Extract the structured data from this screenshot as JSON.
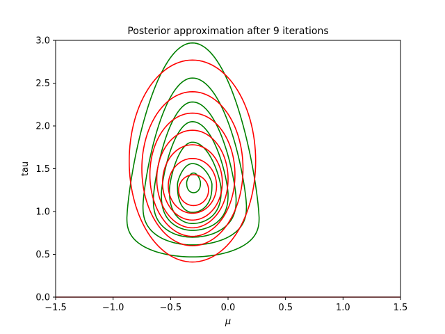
{
  "chart_data": {
    "type": "contour",
    "title": "Posterior approximation after 9 iterations",
    "xlabel": "μ",
    "ylabel": "tau",
    "xlim": [
      -1.5,
      1.5
    ],
    "ylim": [
      0.0,
      3.0
    ],
    "xticks": [
      -1.5,
      -1.0,
      -0.5,
      0.0,
      0.5,
      1.0,
      1.5
    ],
    "xtick_labels": [
      "−1.5",
      "−1.0",
      "−0.5",
      "0.0",
      "0.5",
      "1.0",
      "1.5"
    ],
    "yticks": [
      0.0,
      0.5,
      1.0,
      1.5,
      2.0,
      2.5,
      3.0
    ],
    "ytick_labels": [
      "0.0",
      "0.5",
      "1.0",
      "1.5",
      "2.0",
      "2.5",
      "3.0"
    ],
    "grid": false,
    "baseline_line": {
      "y": 0.0,
      "color": "#d62728"
    },
    "series": [
      {
        "color": "#008000",
        "kind": "skewed",
        "contours": [
          {
            "x_left": -0.88,
            "x_right": 0.27,
            "y_bottom": 0.47,
            "y_top": 2.97,
            "y_widest": 0.93,
            "x_center": -0.31
          },
          {
            "x_left": -0.74,
            "x_right": 0.16,
            "y_bottom": 0.61,
            "y_top": 2.56,
            "y_widest": 1.07,
            "x_center": -0.31
          },
          {
            "x_left": -0.65,
            "x_right": 0.07,
            "y_bottom": 0.7,
            "y_top": 2.28,
            "y_widest": 1.15,
            "x_center": -0.31
          },
          {
            "x_left": -0.58,
            "x_right": 0.0,
            "y_bottom": 0.78,
            "y_top": 2.05,
            "y_widest": 1.21,
            "x_center": -0.31
          },
          {
            "x_left": -0.51,
            "x_right": -0.06,
            "y_bottom": 0.86,
            "y_top": 1.81,
            "y_widest": 1.26,
            "x_center": -0.31
          },
          {
            "x_left": -0.44,
            "x_right": -0.14,
            "y_bottom": 0.99,
            "y_top": 1.56,
            "y_widest": 1.32,
            "x_center": -0.31
          },
          {
            "x_left": -0.36,
            "x_right": -0.24,
            "y_bottom": 1.22,
            "y_top": 1.45,
            "y_widest": 1.34,
            "x_center": -0.3
          }
        ]
      },
      {
        "color": "#ff0000",
        "kind": "ellipse",
        "contours": [
          {
            "x_center": -0.31,
            "y_center": 1.59,
            "x_radius": 0.55,
            "y_radius": 1.18
          },
          {
            "x_center": -0.31,
            "y_center": 1.5,
            "x_radius": 0.44,
            "y_radius": 0.9
          },
          {
            "x_center": -0.31,
            "y_center": 1.43,
            "x_radius": 0.37,
            "y_radius": 0.72
          },
          {
            "x_center": -0.31,
            "y_center": 1.38,
            "x_radius": 0.31,
            "y_radius": 0.57
          },
          {
            "x_center": -0.31,
            "y_center": 1.34,
            "x_radius": 0.26,
            "y_radius": 0.44
          },
          {
            "x_center": -0.31,
            "y_center": 1.3,
            "x_radius": 0.21,
            "y_radius": 0.32
          },
          {
            "x_center": -0.3,
            "y_center": 1.25,
            "x_radius": 0.13,
            "y_radius": 0.18
          }
        ]
      }
    ]
  }
}
